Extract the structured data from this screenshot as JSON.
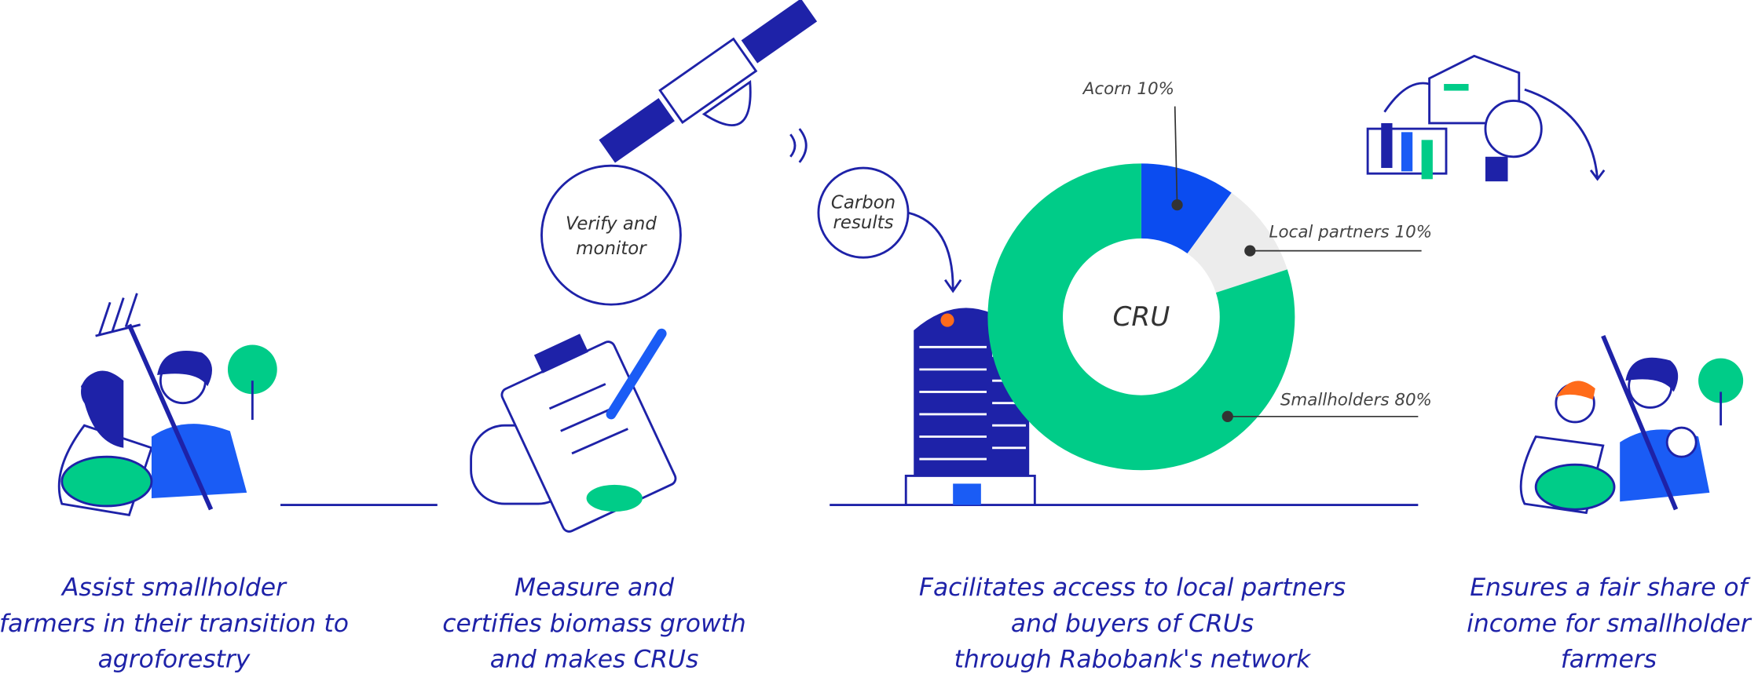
{
  "captions": [
    [
      "Assist smallholder",
      "farmers in their transition to",
      "agroforestry"
    ],
    [
      "Measure and",
      "certifies biomass growth",
      "and makes CRUs"
    ],
    [
      "Facilitates access to local partners",
      "and buyers of CRUs",
      "through Rabobank's network"
    ],
    [
      "Ensures a fair share of",
      "income for smallholder",
      "farmers"
    ]
  ],
  "bubbles": {
    "verify": [
      "Verify and",
      "monitor"
    ],
    "carbon": [
      "Carbon",
      "results"
    ]
  },
  "chart_data": {
    "type": "pie",
    "center_label": "CRU",
    "categories": [
      "Acorn",
      "Local partners",
      "Smallholders"
    ],
    "values": [
      10,
      10,
      80
    ],
    "value_labels": [
      "10%",
      "10%",
      "80%"
    ],
    "colors": [
      "#0b4cf0",
      "#ececec",
      "#00cc88"
    ]
  }
}
